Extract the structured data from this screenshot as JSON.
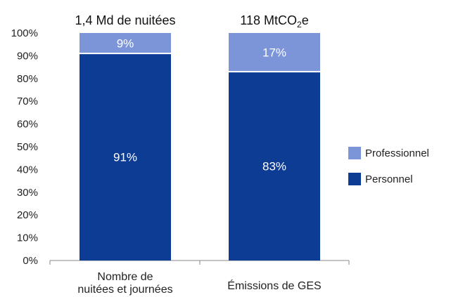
{
  "chart_data": {
    "type": "bar",
    "stacked": true,
    "categories": [
      [
        "Nombre de",
        "nuitées et journées"
      ],
      [
        "Émissions de GES"
      ]
    ],
    "top_labels": [
      {
        "text": "1,4 Md de nuitées"
      },
      {
        "text": "118 MtCO",
        "sub": "2",
        "suffix": "e"
      }
    ],
    "series": [
      {
        "name": "Personnel",
        "values": [
          91,
          83
        ],
        "labels": [
          "91%",
          "83%"
        ],
        "color": "#0d3c94"
      },
      {
        "name": "Professionnel",
        "values": [
          9,
          17
        ],
        "labels": [
          "9%",
          "17%"
        ],
        "color": "#7b95d8"
      }
    ],
    "ylim": [
      0,
      100
    ],
    "yticks": [
      "0%",
      "10%",
      "20%",
      "30%",
      "40%",
      "50%",
      "60%",
      "70%",
      "80%",
      "90%",
      "100%"
    ],
    "grid": false,
    "legend": {
      "position": "right",
      "order": [
        "Professionnel",
        "Personnel"
      ]
    }
  }
}
